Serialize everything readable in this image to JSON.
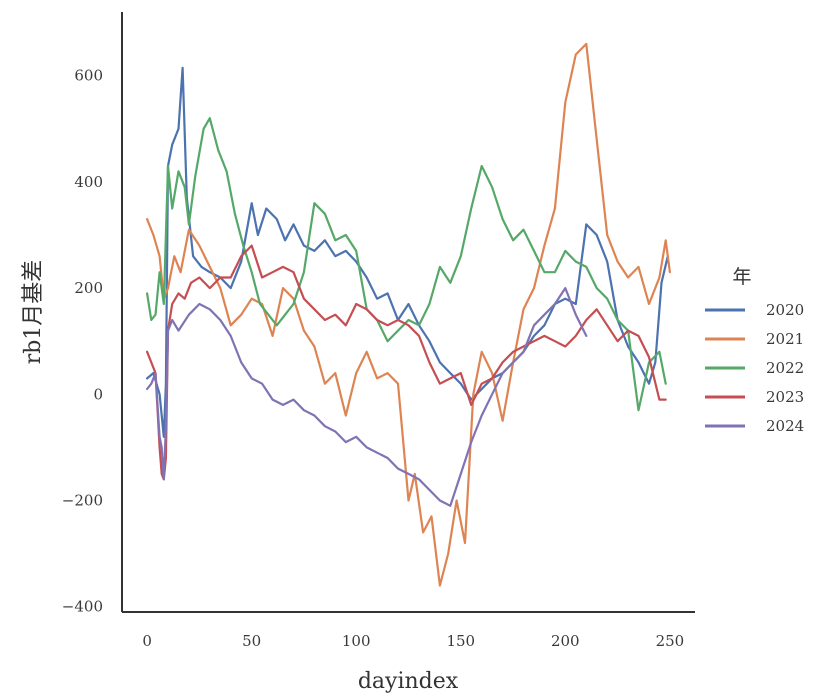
{
  "chart_data": {
    "type": "line",
    "title": "",
    "xlabel": "dayindex",
    "ylabel": "rb1月基差",
    "xlim": [
      -12,
      262
    ],
    "ylim": [
      -410,
      720
    ],
    "xticks": [
      0,
      50,
      100,
      150,
      200,
      250
    ],
    "yticks": [
      -400,
      -200,
      0,
      200,
      400,
      600
    ],
    "grid": false,
    "legend": {
      "title": "年",
      "placement": "right"
    },
    "series": [
      {
        "name": "2020",
        "color": "#4c72b0",
        "x": [
          0,
          3,
          6,
          8,
          9,
          10,
          12,
          15,
          17,
          19,
          22,
          26,
          30,
          35,
          40,
          45,
          50,
          53,
          57,
          62,
          66,
          70,
          75,
          80,
          85,
          90,
          95,
          100,
          105,
          110,
          115,
          120,
          125,
          130,
          135,
          140,
          145,
          150,
          155,
          160,
          165,
          170,
          175,
          180,
          185,
          190,
          195,
          200,
          205,
          210,
          215,
          220,
          225,
          230,
          235,
          240,
          243,
          246,
          249
        ],
        "y": [
          30,
          40,
          0,
          -80,
          20,
          430,
          470,
          500,
          615,
          370,
          260,
          240,
          230,
          220,
          200,
          250,
          360,
          300,
          350,
          330,
          290,
          320,
          280,
          270,
          290,
          260,
          270,
          250,
          220,
          180,
          190,
          140,
          170,
          130,
          100,
          60,
          40,
          20,
          -10,
          10,
          30,
          40,
          60,
          80,
          110,
          130,
          170,
          180,
          170,
          320,
          300,
          250,
          140,
          90,
          60,
          20,
          60,
          210,
          260
        ]
      },
      {
        "name": "2021",
        "color": "#dd8452",
        "x": [
          0,
          3,
          6,
          8,
          10,
          13,
          16,
          20,
          25,
          30,
          35,
          40,
          45,
          50,
          55,
          60,
          65,
          70,
          75,
          80,
          85,
          90,
          95,
          100,
          105,
          110,
          115,
          120,
          125,
          128,
          132,
          136,
          140,
          144,
          148,
          152,
          156,
          160,
          165,
          170,
          175,
          180,
          185,
          190,
          195,
          200,
          205,
          210,
          215,
          220,
          225,
          230,
          235,
          240,
          245,
          248,
          250
        ],
        "y": [
          330,
          300,
          260,
          180,
          200,
          260,
          230,
          310,
          280,
          240,
          200,
          130,
          150,
          180,
          170,
          110,
          200,
          180,
          120,
          90,
          20,
          40,
          -40,
          40,
          80,
          30,
          40,
          20,
          -200,
          -150,
          -260,
          -230,
          -360,
          -300,
          -200,
          -280,
          0,
          80,
          40,
          -50,
          60,
          160,
          200,
          280,
          350,
          550,
          640,
          660,
          480,
          300,
          250,
          220,
          240,
          170,
          220,
          290,
          230
        ]
      },
      {
        "name": "2022",
        "color": "#55a868",
        "x": [
          0,
          2,
          4,
          6,
          8,
          10,
          12,
          15,
          18,
          20,
          23,
          27,
          30,
          34,
          38,
          42,
          46,
          50,
          54,
          58,
          62,
          66,
          70,
          75,
          80,
          85,
          90,
          95,
          100,
          105,
          110,
          115,
          120,
          125,
          130,
          135,
          140,
          145,
          150,
          155,
          160,
          165,
          170,
          175,
          180,
          185,
          190,
          195,
          200,
          205,
          210,
          215,
          220,
          225,
          230,
          235,
          240,
          245,
          248
        ],
        "y": [
          190,
          140,
          150,
          230,
          170,
          430,
          350,
          420,
          390,
          320,
          410,
          500,
          520,
          460,
          420,
          340,
          280,
          230,
          170,
          150,
          130,
          150,
          170,
          230,
          360,
          340,
          290,
          300,
          270,
          160,
          140,
          100,
          120,
          140,
          130,
          170,
          240,
          210,
          260,
          350,
          430,
          390,
          330,
          290,
          310,
          270,
          230,
          230,
          270,
          250,
          240,
          200,
          180,
          140,
          120,
          -30,
          60,
          80,
          20
        ]
      },
      {
        "name": "2023",
        "color": "#c44e52",
        "x": [
          0,
          2,
          4,
          6,
          7,
          8,
          9,
          10,
          12,
          15,
          18,
          21,
          25,
          30,
          35,
          40,
          45,
          50,
          55,
          60,
          65,
          70,
          75,
          80,
          85,
          90,
          95,
          100,
          105,
          110,
          115,
          120,
          125,
          130,
          135,
          140,
          145,
          150,
          155,
          160,
          165,
          170,
          175,
          180,
          185,
          190,
          195,
          200,
          205,
          210,
          215,
          220,
          225,
          230,
          235,
          240,
          245,
          248
        ],
        "y": [
          80,
          60,
          40,
          -100,
          -150,
          -160,
          -120,
          120,
          170,
          190,
          180,
          210,
          220,
          200,
          220,
          220,
          260,
          280,
          220,
          230,
          240,
          230,
          180,
          160,
          140,
          150,
          130,
          170,
          160,
          140,
          130,
          140,
          130,
          110,
          60,
          20,
          30,
          40,
          -20,
          20,
          30,
          60,
          80,
          90,
          100,
          110,
          100,
          90,
          110,
          140,
          160,
          130,
          100,
          120,
          110,
          70,
          -10,
          -10
        ]
      },
      {
        "name": "2024",
        "color": "#8172b3",
        "x": [
          0,
          2,
          4,
          6,
          7,
          8,
          9,
          10,
          12,
          15,
          20,
          25,
          30,
          35,
          40,
          45,
          50,
          55,
          60,
          65,
          70,
          75,
          80,
          85,
          90,
          95,
          100,
          105,
          110,
          115,
          120,
          125,
          130,
          135,
          140,
          145,
          150,
          155,
          160,
          165,
          170,
          175,
          180,
          185,
          190,
          195,
          200,
          205,
          210
        ],
        "y": [
          10,
          20,
          40,
          -80,
          -100,
          -160,
          -60,
          120,
          140,
          120,
          150,
          170,
          160,
          140,
          110,
          60,
          30,
          20,
          -10,
          -20,
          -10,
          -30,
          -40,
          -60,
          -70,
          -90,
          -80,
          -100,
          -110,
          -120,
          -140,
          -150,
          -160,
          -180,
          -200,
          -210,
          -150,
          -90,
          -40,
          0,
          40,
          60,
          80,
          130,
          150,
          170,
          200,
          150,
          110
        ]
      }
    ]
  }
}
